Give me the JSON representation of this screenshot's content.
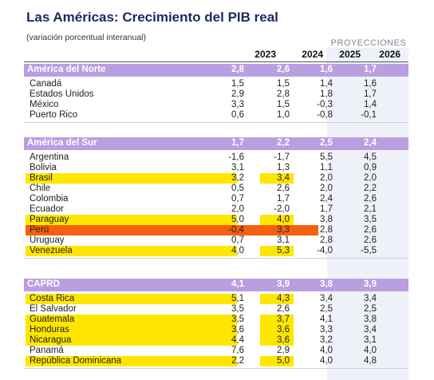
{
  "title": "Las Américas: Crecimiento del PIB real",
  "subtitle": "(variación porcentual interanual)",
  "projections_label": "PROYECCIONES",
  "years": [
    "2023",
    "2024",
    "2025",
    "2026"
  ],
  "colors": {
    "header": "#b99fe0",
    "highlight_yellow": "#ffe600",
    "highlight_orange": "#f4600f",
    "proj_bg": "#eef1f7"
  },
  "sections": [
    {
      "name": "América del Norte",
      "values": [
        "2,8",
        "2,6",
        "1,6",
        "1,7"
      ],
      "rows": [
        {
          "name": "Canadá",
          "values": [
            "1,5",
            "1,5",
            "1,4",
            "1,6"
          ],
          "highlight": ""
        },
        {
          "name": "Estados Unidos",
          "values": [
            "2,9",
            "2,8",
            "1,8",
            "1,7"
          ],
          "highlight": ""
        },
        {
          "name": "México",
          "values": [
            "3,3",
            "1,5",
            "-0,3",
            "1,4"
          ],
          "highlight": ""
        },
        {
          "name": "Puerto Rico",
          "values": [
            "0,6",
            "1,0",
            "-0,8",
            "-0,1"
          ],
          "highlight": ""
        }
      ]
    },
    {
      "name": "América del Sur",
      "values": [
        "1,7",
        "2,2",
        "2,5",
        "2,4"
      ],
      "rows": [
        {
          "name": "Argentina",
          "values": [
            "-1,6",
            "-1,7",
            "5,5",
            "4,5"
          ],
          "highlight": ""
        },
        {
          "name": "Bolivia",
          "values": [
            "3,1",
            "1,3",
            "1,1",
            "0,9"
          ],
          "highlight": ""
        },
        {
          "name": "Brasil",
          "values": [
            "3,2",
            "3,4",
            "2,0",
            "2,0"
          ],
          "highlight": "yellow"
        },
        {
          "name": "Chile",
          "values": [
            "0,5",
            "2,6",
            "2,0",
            "2,2"
          ],
          "highlight": ""
        },
        {
          "name": "Colombia",
          "values": [
            "0,7",
            "1,7",
            "2,4",
            "2,6"
          ],
          "highlight": ""
        },
        {
          "name": "Ecuador",
          "values": [
            "2,0",
            "-2,0",
            "1,7",
            "2,1"
          ],
          "highlight": ""
        },
        {
          "name": "Paraguay",
          "values": [
            "5,0",
            "4,0",
            "3,8",
            "3,5"
          ],
          "highlight": "yellow"
        },
        {
          "name": "Perú",
          "values": [
            "-0,4",
            "3,3",
            "2,8",
            "2,6"
          ],
          "highlight": "orange"
        },
        {
          "name": "Uruguay",
          "values": [
            "0,7",
            "3,1",
            "2,8",
            "2,6"
          ],
          "highlight": ""
        },
        {
          "name": "Venezuela",
          "values": [
            "4,0",
            "5,3",
            "-4,0",
            "-5,5"
          ],
          "highlight": "yellow"
        }
      ]
    },
    {
      "name": "CAPRD",
      "values": [
        "4,1",
        "3,9",
        "3,8",
        "3,9"
      ],
      "rows": [
        {
          "name": "Costa Rica",
          "values": [
            "5,1",
            "4,3",
            "3,4",
            "3,4"
          ],
          "highlight": "yellow"
        },
        {
          "name": "El Salvador",
          "values": [
            "3,5",
            "2,6",
            "2,5",
            "2,5"
          ],
          "highlight": ""
        },
        {
          "name": "Guatemala",
          "values": [
            "3,5",
            "3,7",
            "4,1",
            "3,8"
          ],
          "highlight": "yellow"
        },
        {
          "name": "Honduras",
          "values": [
            "3,6",
            "3,6",
            "3,3",
            "3,4"
          ],
          "highlight": "yellow"
        },
        {
          "name": "Nicaragua",
          "values": [
            "4,4",
            "3,6",
            "3,2",
            "3,1"
          ],
          "highlight": "yellow"
        },
        {
          "name": "Panamá",
          "values": [
            "7,6",
            "2,9",
            "4,0",
            "4,0"
          ],
          "highlight": ""
        },
        {
          "name": "República Dominicana",
          "values": [
            "2,2",
            "5,0",
            "4,0",
            "4,8"
          ],
          "highlight": "yellow"
        }
      ]
    }
  ]
}
